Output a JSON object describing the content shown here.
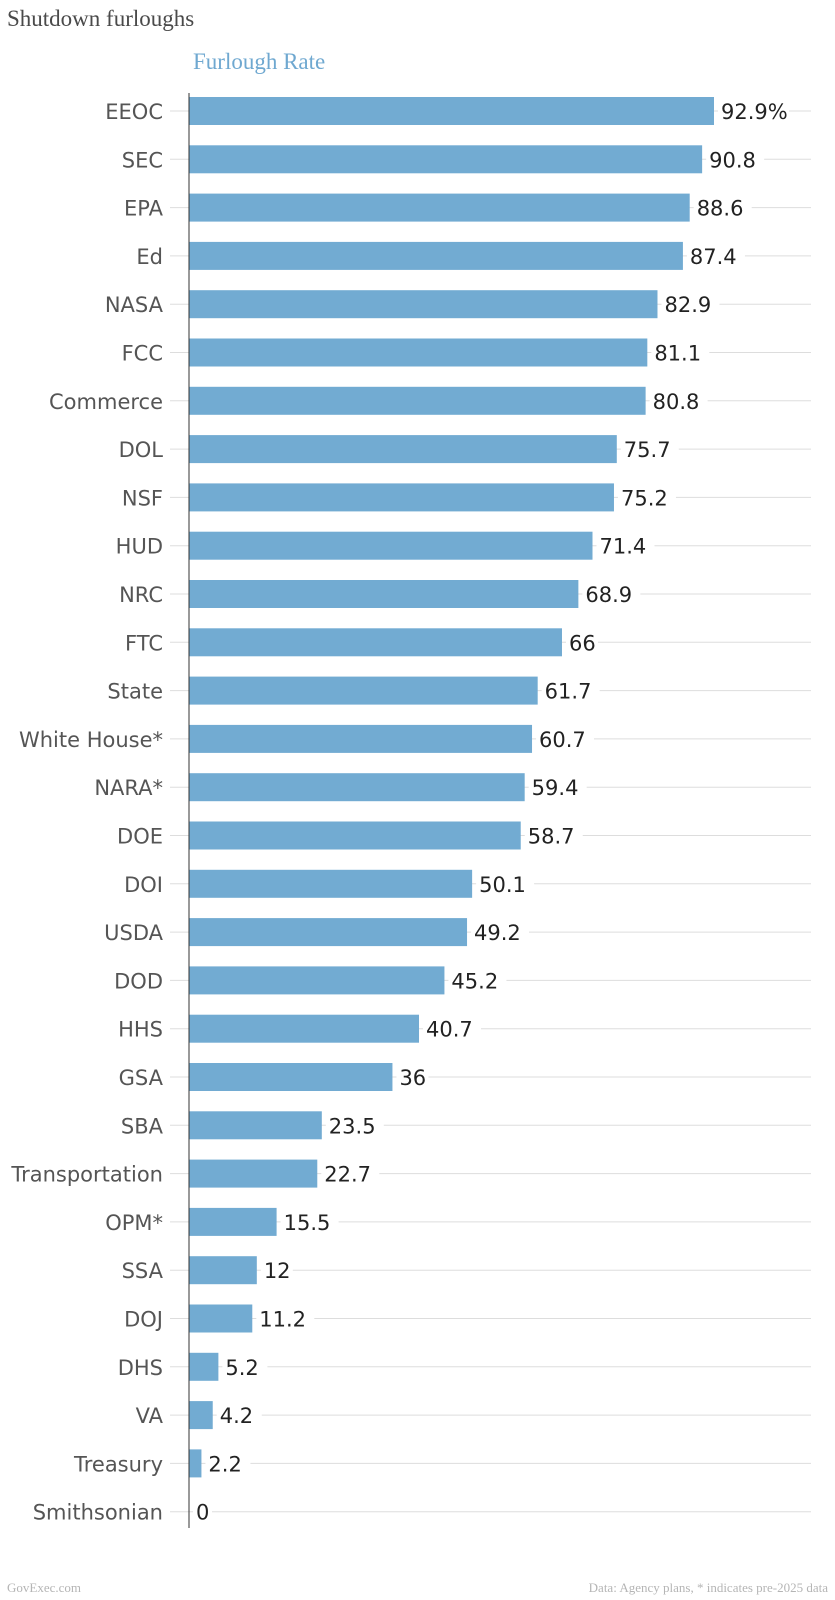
{
  "header": {
    "title": "Shutdown furloughs",
    "series_title": "Furlough Rate"
  },
  "footer": {
    "source_left": "GovExec.com",
    "source_right": "Data: Agency plans, * indicates pre-2025 data"
  },
  "colors": {
    "bar": "#72abd2",
    "gridline": "#dddddd",
    "axis": "#333333",
    "series_title": "#6fa8d0"
  },
  "chart_data": {
    "type": "bar",
    "orientation": "horizontal",
    "series_name": "Furlough Rate",
    "categories": [
      "EEOC",
      "SEC",
      "EPA",
      "Ed",
      "NASA",
      "FCC",
      "Commerce",
      "DOL",
      "NSF",
      "HUD",
      "NRC",
      "FTC",
      "State",
      "White House*",
      "NARA*",
      "DOE",
      "DOI",
      "USDA",
      "DOD",
      "HHS",
      "GSA",
      "SBA",
      "Transportation",
      "OPM*",
      "SSA",
      "DOJ",
      "DHS",
      "VA",
      "Treasury",
      "Smithsonian"
    ],
    "values": [
      92.9,
      90.8,
      88.6,
      87.4,
      82.9,
      81.1,
      80.8,
      75.7,
      75.2,
      71.4,
      68.9,
      66,
      61.7,
      60.7,
      59.4,
      58.7,
      50.1,
      49.2,
      45.2,
      40.7,
      36,
      23.5,
      22.7,
      15.5,
      12,
      11.2,
      5.2,
      4.2,
      2.2,
      0
    ],
    "value_labels": [
      "92.9%",
      "90.8",
      "88.6",
      "87.4",
      "82.9",
      "81.1",
      "80.8",
      "75.7",
      "75.2",
      "71.4",
      "68.9",
      "66",
      "61.7",
      "60.7",
      "59.4",
      "58.7",
      "50.1",
      "49.2",
      "45.2",
      "40.7",
      "36",
      "23.5",
      "22.7",
      "15.5",
      "12",
      "11.2",
      "5.2",
      "4.2",
      "2.2",
      "0"
    ],
    "xlim": [
      0,
      100
    ],
    "grid": true,
    "legend": "none"
  }
}
